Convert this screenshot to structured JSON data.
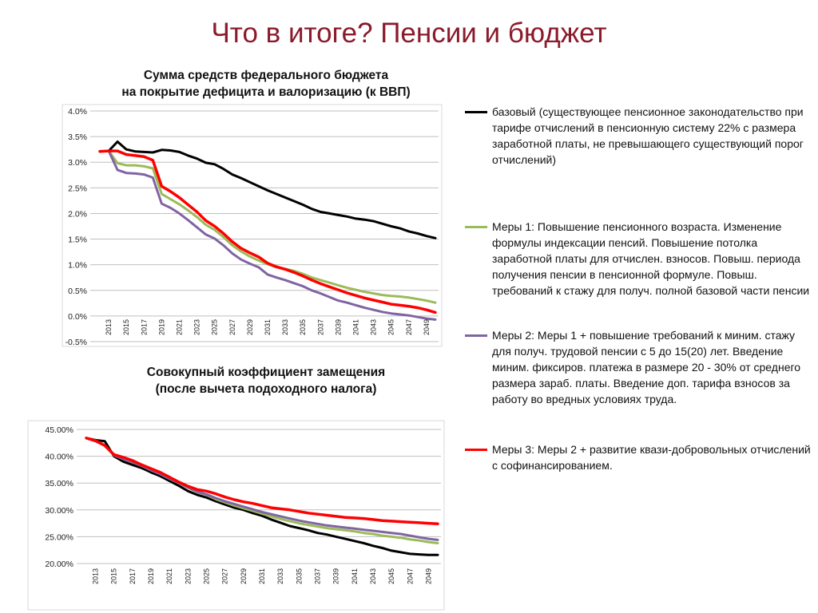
{
  "slide_title": "Что в итоге? Пенсии и бюджет",
  "colors": {
    "title": "#8b1a2b",
    "base": "#000000",
    "m1": "#9bbb59",
    "m2": "#8064a2",
    "m3": "#ff0000"
  },
  "legend": [
    {
      "name": "базовый",
      "color": "#000000",
      "text": "базовый (существующее пенсионное законодательство при тарифе отчислений в пенсионную систему 22% с размера заработной платы, не превышающего существующий порог отчислений)"
    },
    {
      "name": "Меры 1",
      "color": "#9bbb59",
      "text": "Меры 1: Повышение пенсионного возраста. Изменение формулы индексации пенсий. Повышение  потолка заработной платы для отчислен. взносов. Повыш. периода получения пенсии в пенсионной формуле.  Повыш. требований к стажу для получ. полной базовой части пенсии"
    },
    {
      "name": "Меры 2",
      "color": "#8064a2",
      "text": "Меры 2: Меры 1 +  повышение требований к миним. стажу для получ. трудовой пенсии с 5 до 15(20) лет. Введение миним. фиксиров. платежа в размере 20 - 30%  от среднего размера зараб. платы.  Введение доп. тарифа взносов за работу во вредных условиях труда."
    },
    {
      "name": "Меры 3",
      "color": "#ff0000",
      "text": "Меры 3: Меры 2 + развитие квази-добровольных отчислений с софинансированием."
    }
  ],
  "chart_data": [
    {
      "type": "line",
      "title_lines": [
        "Сумма средств федерального бюджета",
        "на покрытие дефицита и валоризацию (к ВВП)"
      ],
      "x": [
        2012,
        2013,
        2014,
        2015,
        2016,
        2017,
        2018,
        2019,
        2020,
        2021,
        2022,
        2023,
        2024,
        2025,
        2026,
        2027,
        2028,
        2029,
        2030,
        2031,
        2032,
        2033,
        2034,
        2035,
        2036,
        2037,
        2038,
        2039,
        2040,
        2041,
        2042,
        2043,
        2044,
        2045,
        2046,
        2047,
        2048,
        2049,
        2050
      ],
      "x_tick_labels": [
        "2013",
        "2015",
        "2017",
        "2019",
        "2021",
        "2023",
        "2025",
        "2027",
        "2029",
        "2031",
        "2033",
        "2035",
        "2037",
        "2039",
        "2041",
        "2043",
        "2045",
        "2047",
        "2049"
      ],
      "y_tick_labels": [
        "4.0%",
        "3.5%",
        "3.0%",
        "2.5%",
        "2.0%",
        "1.5%",
        "1.0%",
        "0.5%",
        "0.0%",
        "-0.5%"
      ],
      "ylim": [
        -0.5,
        4.0
      ],
      "y_unit": "%",
      "grid": "horizontal",
      "series": [
        {
          "name": "базовый",
          "color": "#000000",
          "values": [
            3.21,
            3.22,
            3.4,
            3.25,
            3.21,
            3.2,
            3.19,
            3.24,
            3.23,
            3.2,
            3.13,
            3.07,
            2.99,
            2.96,
            2.87,
            2.76,
            2.69,
            2.61,
            2.53,
            2.45,
            2.38,
            2.31,
            2.24,
            2.17,
            2.09,
            2.03,
            2.0,
            1.97,
            1.94,
            1.9,
            1.88,
            1.85,
            1.8,
            1.75,
            1.71,
            1.65,
            1.61,
            1.56,
            1.52
          ]
        },
        {
          "name": "Меры 1",
          "color": "#9bbb59",
          "values": [
            3.21,
            3.22,
            2.98,
            2.94,
            2.94,
            2.92,
            2.88,
            2.38,
            2.28,
            2.18,
            2.06,
            1.93,
            1.78,
            1.68,
            1.54,
            1.38,
            1.26,
            1.16,
            1.08,
            1.01,
            0.95,
            0.92,
            0.88,
            0.82,
            0.75,
            0.7,
            0.65,
            0.6,
            0.55,
            0.51,
            0.47,
            0.44,
            0.41,
            0.39,
            0.38,
            0.36,
            0.33,
            0.3,
            0.26
          ]
        },
        {
          "name": "Меры 2",
          "color": "#8064a2",
          "values": [
            3.21,
            3.22,
            2.85,
            2.79,
            2.78,
            2.76,
            2.7,
            2.19,
            2.11,
            2.0,
            1.87,
            1.73,
            1.59,
            1.51,
            1.38,
            1.22,
            1.1,
            1.02,
            0.95,
            0.81,
            0.75,
            0.7,
            0.64,
            0.58,
            0.5,
            0.44,
            0.37,
            0.3,
            0.26,
            0.21,
            0.16,
            0.12,
            0.08,
            0.05,
            0.03,
            0.01,
            -0.02,
            -0.05,
            -0.07
          ]
        },
        {
          "name": "Меры 3",
          "color": "#ff0000",
          "values": [
            3.21,
            3.22,
            3.22,
            3.15,
            3.13,
            3.11,
            3.04,
            2.53,
            2.43,
            2.31,
            2.17,
            2.03,
            1.86,
            1.75,
            1.61,
            1.45,
            1.32,
            1.23,
            1.15,
            1.03,
            0.96,
            0.91,
            0.85,
            0.78,
            0.7,
            0.63,
            0.57,
            0.51,
            0.45,
            0.4,
            0.35,
            0.31,
            0.27,
            0.23,
            0.21,
            0.19,
            0.16,
            0.12,
            0.07
          ]
        }
      ]
    },
    {
      "type": "line",
      "title_lines": [
        "Совокупный коэффициент замещения",
        "(после вычета подоходного налога)"
      ],
      "x": [
        2012,
        2013,
        2014,
        2015,
        2016,
        2017,
        2018,
        2019,
        2020,
        2021,
        2022,
        2023,
        2024,
        2025,
        2026,
        2027,
        2028,
        2029,
        2030,
        2031,
        2032,
        2033,
        2034,
        2035,
        2036,
        2037,
        2038,
        2039,
        2040,
        2041,
        2042,
        2043,
        2044,
        2045,
        2046,
        2047,
        2048,
        2049,
        2050
      ],
      "x_tick_labels": [
        "2013",
        "2015",
        "2017",
        "2019",
        "2021",
        "2023",
        "2025",
        "2027",
        "2029",
        "2031",
        "2033",
        "2035",
        "2037",
        "2039",
        "2041",
        "2043",
        "2045",
        "2047",
        "2049"
      ],
      "y_tick_labels": [
        "45.00%",
        "40.00%",
        "35.00%",
        "30.00%",
        "25.00%",
        "20.00%"
      ],
      "ylim": [
        20,
        45
      ],
      "y_unit": "%",
      "grid": "horizontal",
      "series": [
        {
          "name": "базовый",
          "color": "#000000",
          "values": [
            43.4,
            43.0,
            42.8,
            40.0,
            39.0,
            38.4,
            37.8,
            37.0,
            36.3,
            35.4,
            34.5,
            33.5,
            32.8,
            32.3,
            31.6,
            31.0,
            30.4,
            30.0,
            29.4,
            28.9,
            28.2,
            27.6,
            27.0,
            26.6,
            26.2,
            25.7,
            25.4,
            25.0,
            24.6,
            24.2,
            23.8,
            23.3,
            22.9,
            22.4,
            22.1,
            21.8,
            21.7,
            21.6,
            21.6
          ]
        },
        {
          "name": "Меры 1",
          "color": "#9bbb59",
          "values": [
            43.4,
            42.8,
            42.0,
            40.2,
            39.5,
            38.9,
            38.2,
            37.4,
            36.7,
            35.8,
            35.0,
            34.1,
            33.3,
            32.8,
            32.0,
            31.4,
            30.8,
            30.3,
            29.8,
            29.3,
            28.8,
            28.3,
            27.9,
            27.5,
            27.2,
            26.9,
            26.6,
            26.4,
            26.2,
            26.0,
            25.7,
            25.5,
            25.2,
            25.0,
            24.8,
            24.5,
            24.3,
            24.0,
            23.8
          ]
        },
        {
          "name": "Меры 2",
          "color": "#8064a2",
          "values": [
            43.4,
            42.8,
            42.0,
            40.2,
            39.5,
            38.9,
            38.2,
            37.4,
            36.7,
            35.8,
            35.0,
            34.2,
            33.4,
            32.9,
            32.2,
            31.6,
            31.1,
            30.6,
            30.1,
            29.6,
            29.2,
            28.8,
            28.4,
            28.0,
            27.7,
            27.4,
            27.1,
            26.9,
            26.7,
            26.5,
            26.3,
            26.1,
            25.9,
            25.7,
            25.5,
            25.2,
            24.9,
            24.6,
            24.4
          ]
        },
        {
          "name": "Меры 3",
          "color": "#ff0000",
          "values": [
            43.4,
            42.9,
            42.0,
            40.3,
            39.8,
            39.2,
            38.4,
            37.7,
            37.0,
            36.1,
            35.2,
            34.4,
            33.8,
            33.5,
            33.0,
            32.4,
            31.9,
            31.5,
            31.2,
            30.8,
            30.4,
            30.2,
            30.0,
            29.7,
            29.4,
            29.2,
            29.0,
            28.8,
            28.6,
            28.5,
            28.4,
            28.2,
            28.0,
            27.9,
            27.8,
            27.7,
            27.6,
            27.5,
            27.4
          ]
        }
      ]
    }
  ]
}
